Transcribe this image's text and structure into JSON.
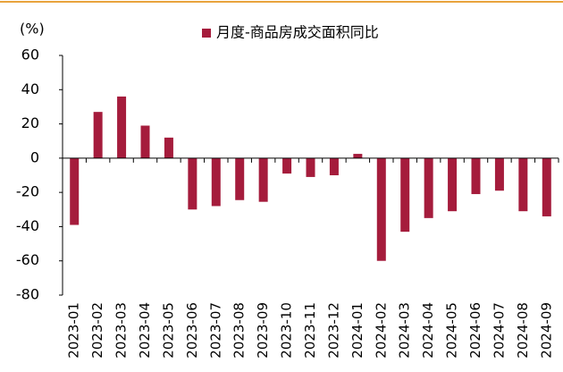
{
  "chart_data": {
    "type": "bar",
    "unit_label": "(%)",
    "categories": [
      "2023-01",
      "2023-02",
      "2023-03",
      "2023-04",
      "2023-05",
      "2023-06",
      "2023-07",
      "2023-08",
      "2023-09",
      "2023-10",
      "2023-11",
      "2023-12",
      "2024-01",
      "2024-02",
      "2024-03",
      "2024-04",
      "2024-05",
      "2024-06",
      "2024-07",
      "2024-08",
      "2024-09"
    ],
    "series": [
      {
        "name": "月度-商品房成交面积同比",
        "color": "#a51c3c",
        "values": [
          -39,
          27,
          36,
          19,
          12,
          -30,
          -28,
          -24.5,
          -25.5,
          -9,
          -11,
          -10,
          2.5,
          -60,
          -43,
          -35,
          -31,
          -21,
          -19,
          -31,
          -34
        ]
      }
    ],
    "ylim": [
      -80,
      60
    ],
    "yticks": [
      -80,
      -60,
      -40,
      -20,
      0,
      20,
      40,
      60
    ],
    "grid": false,
    "legend": "top"
  }
}
